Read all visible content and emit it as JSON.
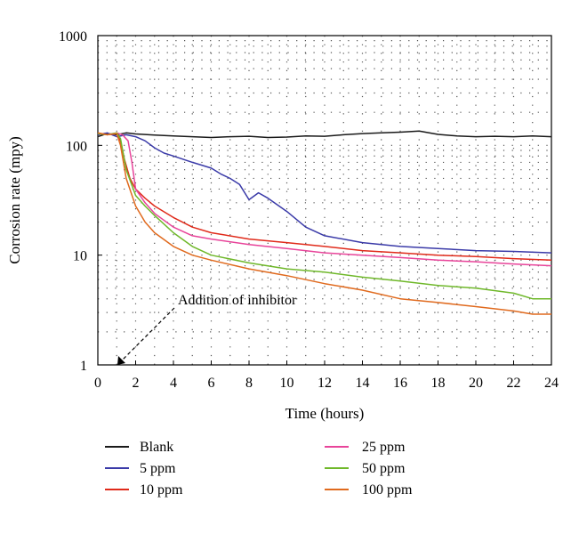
{
  "chart_data": {
    "type": "line",
    "title": "",
    "xlabel": "Time (hours)",
    "ylabel": "Corrosion rate (mpy)",
    "xlim": [
      0,
      24
    ],
    "ylim": [
      1,
      1000
    ],
    "y_scale": "log",
    "x_ticks": [
      0,
      2,
      4,
      6,
      8,
      10,
      12,
      14,
      16,
      18,
      20,
      22,
      24
    ],
    "y_ticks": [
      1,
      10,
      100,
      1000
    ],
    "grid": "dotted",
    "legend_position": "bottom",
    "annotation": {
      "text": "Addition of inhibitor",
      "arrow_target": {
        "x": 1,
        "y": 1
      }
    },
    "series": [
      {
        "name": "Blank",
        "color": "#1a1a1a",
        "x": [
          0,
          0.5,
          1,
          1.5,
          2,
          3,
          4,
          5,
          6,
          7,
          8,
          9,
          10,
          11,
          12,
          13,
          14,
          15,
          16,
          17,
          18,
          19,
          20,
          21,
          22,
          23,
          24
        ],
        "y": [
          120,
          128,
          125,
          130,
          127,
          124,
          122,
          120,
          118,
          120,
          121,
          118,
          119,
          122,
          121,
          125,
          128,
          130,
          132,
          135,
          126,
          122,
          120,
          121,
          120,
          122,
          120
        ]
      },
      {
        "name": "5 ppm",
        "color": "#3a3aa8",
        "x": [
          0,
          0.5,
          1,
          1.5,
          2,
          2.5,
          3,
          3.5,
          4,
          5,
          6,
          6.5,
          7,
          7.5,
          8,
          8.5,
          9,
          10,
          11,
          12,
          14,
          16,
          18,
          20,
          22,
          24
        ],
        "y": [
          125,
          130,
          120,
          125,
          120,
          110,
          95,
          85,
          80,
          70,
          62,
          55,
          50,
          44,
          32,
          37,
          33,
          25,
          18,
          15,
          13,
          12,
          11.5,
          11,
          10.8,
          10.5
        ]
      },
      {
        "name": "10 ppm",
        "color": "#e02a1a",
        "x": [
          0,
          0.5,
          1,
          1.2,
          1.4,
          1.7,
          2,
          2.5,
          3,
          4,
          5,
          6,
          8,
          10,
          12,
          14,
          16,
          18,
          20,
          22,
          24
        ],
        "y": [
          130,
          125,
          128,
          110,
          75,
          50,
          40,
          33,
          28,
          22,
          18,
          16,
          14,
          13,
          12,
          11,
          10.5,
          10,
          9.7,
          9.3,
          9
        ]
      },
      {
        "name": "25 ppm",
        "color": "#e8449a",
        "x": [
          0,
          0.5,
          1,
          1.3,
          1.6,
          1.8,
          2,
          2.5,
          3,
          4,
          5,
          6,
          8,
          10,
          12,
          14,
          16,
          18,
          20,
          22,
          24
        ],
        "y": [
          128,
          125,
          130,
          125,
          110,
          70,
          40,
          30,
          24,
          18,
          15,
          14,
          12.5,
          11.5,
          10.5,
          10,
          9.5,
          9,
          8.7,
          8.3,
          8
        ]
      },
      {
        "name": "50 ppm",
        "color": "#6fb82a",
        "x": [
          0,
          0.5,
          1,
          1.2,
          1.5,
          2,
          2.5,
          3,
          4,
          5,
          6,
          8,
          10,
          12,
          14,
          16,
          18,
          20,
          22,
          23,
          24
        ],
        "y": [
          128,
          125,
          130,
          115,
          60,
          35,
          28,
          23,
          16,
          12,
          10,
          8.5,
          7.5,
          7,
          6.3,
          5.8,
          5.3,
          5,
          4.5,
          4,
          4
        ]
      },
      {
        "name": "100 ppm",
        "color": "#e06a1e",
        "x": [
          0,
          0.5,
          1,
          1.2,
          1.5,
          2,
          2.5,
          3,
          4,
          5,
          6,
          8,
          10,
          12,
          14,
          16,
          18,
          20,
          22,
          23,
          24
        ],
        "y": [
          130,
          125,
          128,
          100,
          50,
          28,
          20,
          16,
          12,
          10,
          9,
          7.5,
          6.5,
          5.5,
          4.8,
          4,
          3.7,
          3.4,
          3.1,
          2.9,
          2.9
        ]
      }
    ]
  }
}
